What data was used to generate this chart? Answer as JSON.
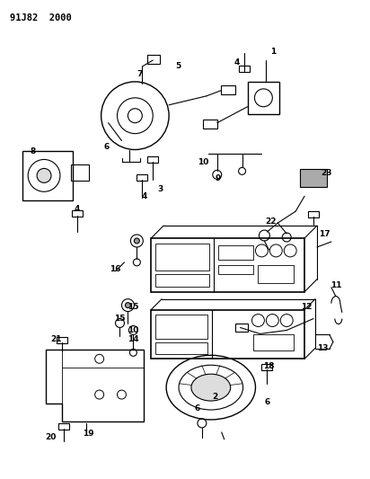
{
  "title": "91J82  2000",
  "bg": "#ffffff",
  "lc": "#000000",
  "figsize": [
    4.12,
    5.33
  ],
  "dpi": 100
}
